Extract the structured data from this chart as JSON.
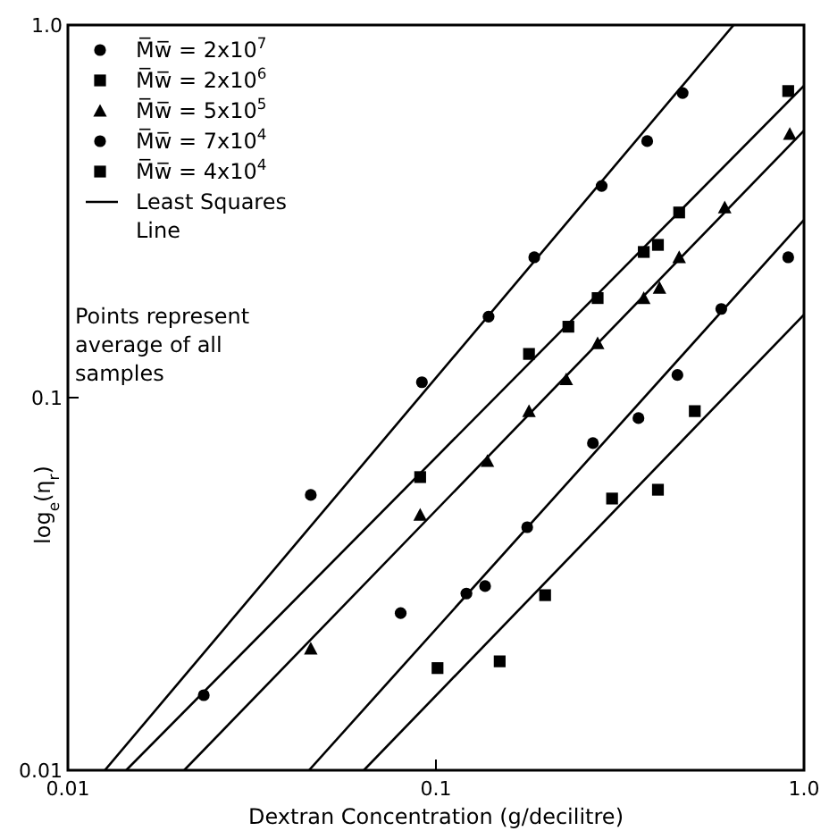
{
  "chart_data": {
    "type": "scatter",
    "xlabel": "Dextran Concentration (g/decilitre)",
    "ylabel": "log$_{e}$(η$_{r}$)",
    "log": "xy",
    "xlim": [
      0.01,
      1
    ],
    "ylim": [
      0.01,
      1
    ],
    "xticks": [
      0.01,
      0.1,
      {
        "value": 1,
        "label": "1.0"
      }
    ],
    "yticks": [
      0.01,
      0.1,
      {
        "value": 1,
        "label": "1.0"
      }
    ],
    "grid": false,
    "legend": "top left",
    "annotations": [
      "Points represent average of all samples"
    ],
    "series": [
      {
        "name": "M̅w̅ = 2x10$^{7}$",
        "color": "#000000",
        "marker": "circle",
        "x": [
          0.0234,
          0.0457,
          0.0916,
          0.139,
          0.185,
          0.282,
          0.375,
          0.468
        ],
        "values": [
          0.0159,
          0.0548,
          0.11,
          0.165,
          0.238,
          0.37,
          0.488,
          0.657
        ]
      },
      {
        "name": "M̅w̅ = 2x10$^{6}$",
        "color": "#000000",
        "marker": "square",
        "x": [
          0.0906,
          0.179,
          0.229,
          0.275,
          0.367,
          0.401,
          0.458,
          0.906
        ],
        "values": [
          0.0612,
          0.131,
          0.155,
          0.185,
          0.246,
          0.257,
          0.314,
          0.665
        ]
      },
      {
        "name": "M̅w̅ = 5x10$^{5}$",
        "color": "#000000",
        "marker": "triangle",
        "x": [
          0.0457,
          0.0906,
          0.138,
          0.179,
          0.226,
          0.275,
          0.367,
          0.405,
          0.458,
          0.609,
          0.915
        ],
        "values": [
          0.0212,
          0.0485,
          0.0676,
          0.092,
          0.112,
          0.14,
          0.185,
          0.197,
          0.238,
          0.324,
          0.51
        ]
      },
      {
        "name": "M̅w̅ = 7x10$^{4}$",
        "color": "#000000",
        "marker": "circle",
        "x": [
          0.0802,
          0.121,
          0.136,
          0.177,
          0.267,
          0.355,
          0.453,
          0.596,
          0.906
        ],
        "values": [
          0.0264,
          0.0298,
          0.0312,
          0.0449,
          0.0755,
          0.0881,
          0.115,
          0.173,
          0.238
        ]
      },
      {
        "name": "M̅w̅ = 4x10$^{4}$",
        "color": "#000000",
        "marker": "square",
        "x": [
          0.101,
          0.149,
          0.198,
          0.301,
          0.401,
          0.505
        ],
        "values": [
          0.0188,
          0.0196,
          0.0295,
          0.0536,
          0.0566,
          0.092
        ]
      },
      {
        "name": "Least Squares Line",
        "type": "line",
        "color": "#000000",
        "marker": "none",
        "x": [
          0.0126,
          0.644
        ],
        "values": [
          0.01,
          1
        ]
      },
      {
        "type": "line",
        "color": "#000000",
        "marker": "none",
        "x": [
          0.0144,
          1
        ],
        "values": [
          0.01,
          0.687
        ]
      },
      {
        "type": "line",
        "color": "#000000",
        "marker": "none",
        "x": [
          0.0207,
          1
        ],
        "values": [
          0.01,
          0.521
        ]
      },
      {
        "type": "line",
        "color": "#000000",
        "marker": "none",
        "x": [
          0.0452,
          1
        ],
        "values": [
          0.01,
          0.3
        ]
      },
      {
        "type": "line",
        "color": "#000000",
        "marker": "none",
        "x": [
          0.0637,
          1
        ],
        "values": [
          0.01,
          0.167
        ]
      }
    ]
  }
}
